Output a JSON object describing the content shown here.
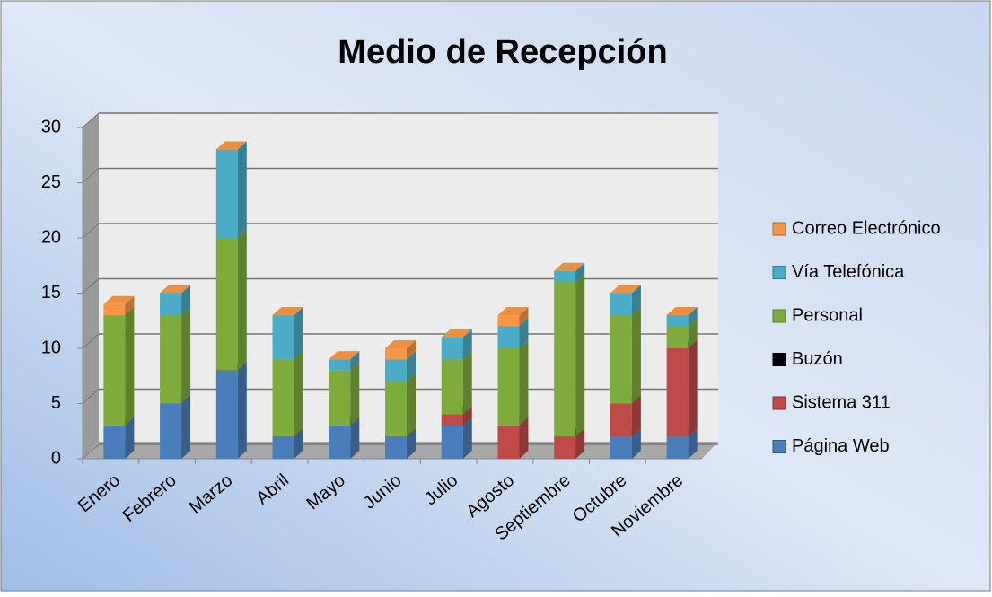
{
  "chart_data": {
    "type": "stacked_bar_3d",
    "title": "Medio de Recepción",
    "categories": [
      "Enero",
      "Febrero",
      "Marzo",
      "Abril",
      "Mayo",
      "Junio",
      "Julio",
      "Agosto",
      "Septiembre",
      "Octubre",
      "Noviembre"
    ],
    "series": [
      {
        "name": "Página Web",
        "color": "#4a7ebb",
        "values": [
          3,
          5,
          8,
          2,
          3,
          2,
          3,
          0,
          0,
          2,
          2
        ]
      },
      {
        "name": "Sistema 311",
        "color": "#be4b48",
        "values": [
          0,
          0,
          0,
          0,
          0,
          0,
          1,
          3,
          2,
          3,
          8
        ]
      },
      {
        "name": "Buzón",
        "color": "#000000",
        "values": [
          0,
          0,
          0,
          0,
          0,
          0,
          0,
          0,
          0,
          0,
          0
        ]
      },
      {
        "name": "Personal",
        "color": "#7eac3c",
        "values": [
          10,
          8,
          12,
          7,
          5,
          5,
          5,
          7,
          14,
          8,
          2
        ]
      },
      {
        "name": "Vía Telefónica",
        "color": "#4bacc6",
        "values": [
          0,
          2,
          8,
          4,
          1,
          2,
          2,
          2,
          1,
          2,
          1
        ]
      },
      {
        "name": "Correo Electrónico",
        "color": "#f79646",
        "values": [
          1,
          0,
          0,
          0,
          0,
          1,
          0,
          1,
          0,
          0,
          0
        ]
      }
    ],
    "ylim": [
      0,
      30
    ],
    "yticks": [
      0,
      5,
      10,
      15,
      20,
      25,
      30
    ],
    "grid": true,
    "legend": "right"
  }
}
